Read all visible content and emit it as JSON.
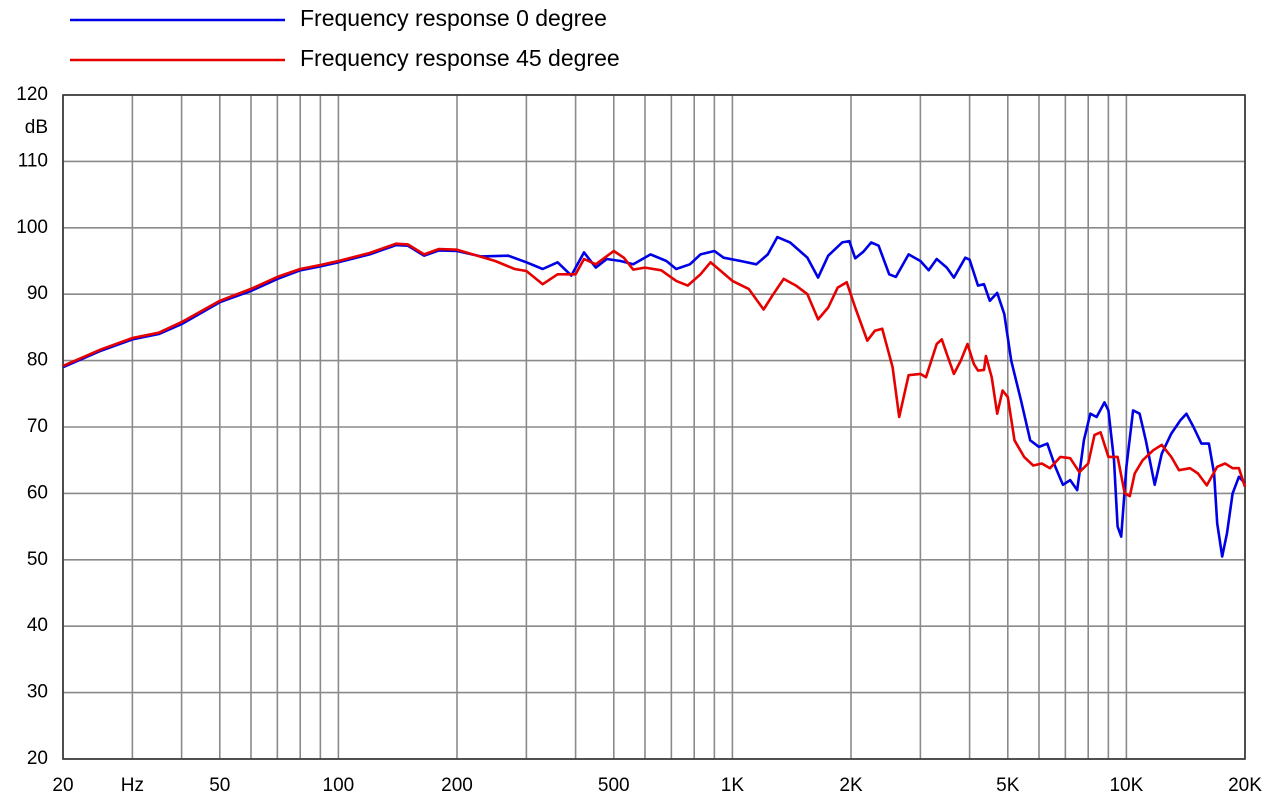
{
  "chart_data": {
    "type": "line",
    "xscale": "log",
    "grid": true,
    "legend": "top-left",
    "xlim": [
      20,
      20000
    ],
    "ylim": [
      20,
      120
    ],
    "yticks": [
      20,
      30,
      40,
      50,
      60,
      70,
      80,
      90,
      100,
      110,
      120
    ],
    "y_unit": "dB",
    "xticks": [
      20,
      {
        "value": 30,
        "label": "Hz"
      },
      50,
      100,
      200,
      500,
      {
        "value": 1000,
        "label": "1K"
      },
      {
        "value": 2000,
        "label": "2K"
      },
      {
        "value": 5000,
        "label": "5K"
      },
      {
        "value": 10000,
        "label": "10K"
      },
      {
        "value": 20000,
        "label": "20K"
      }
    ],
    "x_minor_ticks": [
      40,
      60,
      70,
      80,
      90,
      300,
      400,
      600,
      700,
      800,
      900,
      3000,
      4000,
      6000,
      7000,
      8000,
      9000
    ],
    "series": [
      {
        "name": "Frequency response 0 degree",
        "color": "#0000e6",
        "x": [
          20,
          25,
          30,
          35,
          40,
          50,
          60,
          70,
          80,
          90,
          100,
          120,
          140,
          150,
          165,
          180,
          200,
          230,
          270,
          300,
          330,
          360,
          390,
          420,
          450,
          480,
          520,
          560,
          620,
          680,
          720,
          780,
          830,
          900,
          950,
          1050,
          1150,
          1230,
          1300,
          1400,
          1550,
          1650,
          1750,
          1900,
          1980,
          2050,
          2150,
          2250,
          2350,
          2500,
          2600,
          2800,
          3000,
          3150,
          3300,
          3500,
          3650,
          3900,
          4000,
          4200,
          4350,
          4500,
          4700,
          4900,
          5100,
          5400,
          5700,
          6000,
          6300,
          6600,
          6900,
          7200,
          7500,
          7800,
          8100,
          8400,
          8800,
          9000,
          9300,
          9500,
          9700,
          10000,
          10400,
          10800,
          11200,
          11800,
          12300,
          13000,
          13700,
          14200,
          14800,
          15500,
          16200,
          16700,
          17000,
          17500,
          18000,
          18600,
          19300,
          20000
        ],
        "values": [
          79,
          81.5,
          83.2,
          84,
          85.5,
          88.8,
          90.5,
          92.3,
          93.6,
          94.2,
          94.8,
          96,
          97.4,
          97.3,
          95.8,
          96.6,
          96.5,
          95.7,
          95.8,
          94.8,
          93.8,
          94.8,
          92.8,
          96.3,
          94,
          95.3,
          95,
          94.5,
          96,
          95,
          93.8,
          94.5,
          96,
          96.5,
          95.5,
          95,
          94.5,
          96,
          98.6,
          97.8,
          95.5,
          92.5,
          95.8,
          97.8,
          98,
          95.4,
          96.4,
          97.8,
          97.3,
          93,
          92.6,
          96,
          95,
          93.6,
          95.3,
          94,
          92.5,
          95.5,
          95.2,
          91.3,
          91.5,
          89,
          90.2,
          87,
          80,
          74,
          68,
          67,
          67.5,
          64,
          61.3,
          62,
          60.5,
          68,
          72,
          71.5,
          73.7,
          72.5,
          65,
          55,
          53.5,
          64,
          72.5,
          72,
          68,
          61.3,
          66,
          69,
          71,
          72,
          70,
          67.5,
          67.5,
          63,
          55.5,
          50.5,
          54,
          60,
          62.5,
          61.5
        ]
      },
      {
        "name": "Frequency response 45 degree",
        "color": "#e60000",
        "x": [
          20,
          25,
          30,
          35,
          40,
          50,
          60,
          70,
          80,
          90,
          100,
          120,
          140,
          150,
          165,
          180,
          200,
          250,
          280,
          300,
          330,
          360,
          400,
          420,
          450,
          500,
          530,
          560,
          600,
          660,
          720,
          770,
          830,
          880,
          930,
          1000,
          1100,
          1200,
          1270,
          1350,
          1450,
          1550,
          1650,
          1750,
          1850,
          1950,
          2050,
          2200,
          2300,
          2400,
          2550,
          2650,
          2800,
          3000,
          3100,
          3300,
          3400,
          3500,
          3650,
          3800,
          3950,
          4100,
          4200,
          4350,
          4400,
          4550,
          4700,
          4850,
          5000,
          5200,
          5500,
          5800,
          6100,
          6400,
          6800,
          7200,
          7600,
          8000,
          8300,
          8600,
          9000,
          9500,
          9900,
          10200,
          10500,
          11000,
          11700,
          12300,
          13000,
          13600,
          14500,
          15200,
          16000,
          17000,
          17800,
          18600,
          19300,
          20000
        ],
        "values": [
          79.2,
          81.7,
          83.4,
          84.2,
          85.8,
          89,
          90.8,
          92.6,
          93.8,
          94.4,
          95,
          96.2,
          97.6,
          97.5,
          96,
          96.8,
          96.7,
          95,
          93.8,
          93.5,
          91.5,
          93,
          93,
          95.3,
          94.5,
          96.5,
          95.5,
          93.7,
          94,
          93.6,
          92,
          91.3,
          93,
          94.8,
          93.6,
          92,
          90.8,
          87.7,
          90,
          92.3,
          91.3,
          90,
          86.2,
          88,
          91,
          91.8,
          88,
          83,
          84.5,
          84.8,
          79,
          71.5,
          77.8,
          78,
          77.5,
          82.5,
          83.2,
          81,
          78,
          80,
          82.5,
          79.5,
          78.5,
          78.6,
          80.7,
          77.5,
          72,
          75.5,
          74.5,
          68,
          65.5,
          64.2,
          64.5,
          63.8,
          65.5,
          65.3,
          63.2,
          64.5,
          68.8,
          69.2,
          65.5,
          65.5,
          60,
          59.6,
          63,
          65,
          66.5,
          67.3,
          65.5,
          63.5,
          63.8,
          63,
          61.2,
          64,
          64.5,
          63.8,
          63.8,
          61
        ]
      }
    ]
  }
}
